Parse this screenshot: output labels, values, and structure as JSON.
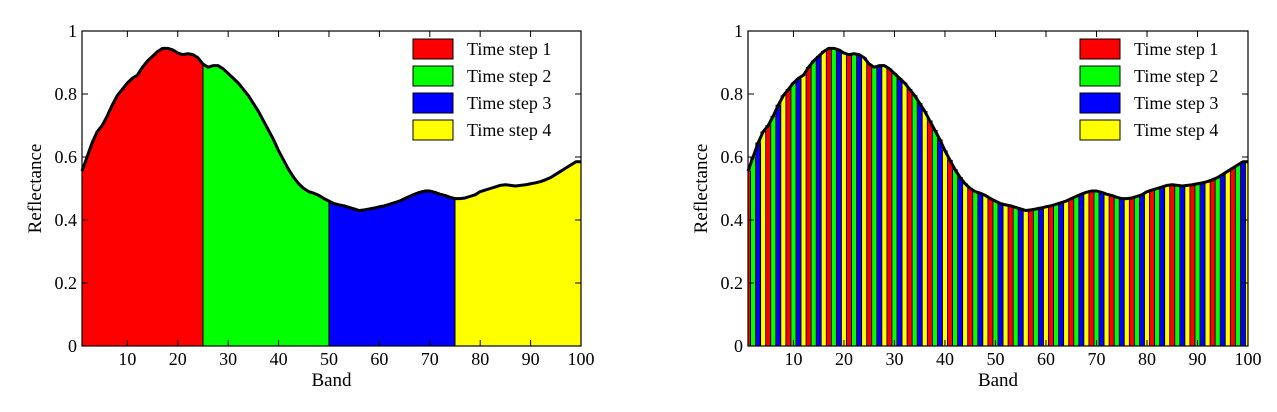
{
  "chart_data": [
    {
      "id": "left",
      "type": "area",
      "xlabel": "Band",
      "ylabel": "Reflectance",
      "xlim": [
        1,
        100
      ],
      "ylim": [
        0,
        1
      ],
      "xticks": [
        10,
        20,
        30,
        40,
        50,
        60,
        70,
        80,
        90,
        100
      ],
      "yticks": [
        0,
        0.2,
        0.4,
        0.6,
        0.8,
        1
      ],
      "ytick_labels": [
        "0",
        "0.2",
        "0.4",
        "0.6",
        "0.8",
        "1"
      ],
      "grid": false,
      "legend_position": "top-right",
      "segments": [
        {
          "name": "Time step 1",
          "color": "#ff0000",
          "x_range": [
            1,
            25
          ]
        },
        {
          "name": "Time step 2",
          "color": "#00ff00",
          "x_range": [
            25,
            50
          ]
        },
        {
          "name": "Time step 3",
          "color": "#0000ff",
          "x_range": [
            50,
            75
          ]
        },
        {
          "name": "Time step 4",
          "color": "#ffff00",
          "x_range": [
            75,
            100
          ]
        }
      ]
    },
    {
      "id": "right",
      "type": "bar",
      "xlabel": "Band",
      "ylabel": "Reflectance",
      "xlim": [
        1,
        100
      ],
      "ylim": [
        0,
        1
      ],
      "xticks": [
        10,
        20,
        30,
        40,
        50,
        60,
        70,
        80,
        90,
        100
      ],
      "yticks": [
        0,
        0.2,
        0.4,
        0.6,
        0.8,
        1
      ],
      "ytick_labels": [
        "0",
        "0.2",
        "0.4",
        "0.6",
        "0.8",
        "1"
      ],
      "grid": false,
      "legend_position": "top-right",
      "series": [
        {
          "name": "Time step 1",
          "color": "#ff0000",
          "band_offset": 0
        },
        {
          "name": "Time step 2",
          "color": "#00ff00",
          "band_offset": 1
        },
        {
          "name": "Time step 3",
          "color": "#0000ff",
          "band_offset": 2
        },
        {
          "name": "Time step 4",
          "color": "#ffff00",
          "band_offset": 3
        }
      ]
    }
  ],
  "spectrum": {
    "x": [
      1,
      2,
      3,
      4,
      5,
      6,
      7,
      8,
      9,
      10,
      11,
      12,
      13,
      14,
      15,
      16,
      17,
      18,
      19,
      20,
      21,
      22,
      23,
      24,
      25,
      26,
      27,
      28,
      29,
      30,
      31,
      32,
      33,
      34,
      35,
      36,
      37,
      38,
      39,
      40,
      41,
      42,
      43,
      44,
      45,
      46,
      47,
      48,
      49,
      50,
      51,
      52,
      53,
      54,
      55,
      56,
      57,
      58,
      59,
      60,
      61,
      62,
      63,
      64,
      65,
      66,
      67,
      68,
      69,
      70,
      71,
      72,
      73,
      74,
      75,
      76,
      77,
      78,
      79,
      80,
      81,
      82,
      83,
      84,
      85,
      86,
      87,
      88,
      89,
      90,
      91,
      92,
      93,
      94,
      95,
      96,
      97,
      98,
      99,
      100
    ],
    "y": [
      0.555,
      0.6,
      0.645,
      0.68,
      0.7,
      0.73,
      0.765,
      0.795,
      0.815,
      0.835,
      0.85,
      0.86,
      0.885,
      0.905,
      0.92,
      0.935,
      0.945,
      0.945,
      0.94,
      0.93,
      0.925,
      0.928,
      0.925,
      0.915,
      0.895,
      0.885,
      0.89,
      0.89,
      0.88,
      0.865,
      0.85,
      0.835,
      0.815,
      0.795,
      0.77,
      0.745,
      0.715,
      0.685,
      0.655,
      0.62,
      0.59,
      0.56,
      0.535,
      0.515,
      0.5,
      0.49,
      0.485,
      0.478,
      0.468,
      0.46,
      0.452,
      0.448,
      0.445,
      0.44,
      0.435,
      0.43,
      0.432,
      0.435,
      0.438,
      0.442,
      0.445,
      0.45,
      0.455,
      0.46,
      0.468,
      0.475,
      0.482,
      0.488,
      0.492,
      0.492,
      0.488,
      0.482,
      0.478,
      0.472,
      0.468,
      0.468,
      0.47,
      0.475,
      0.48,
      0.49,
      0.495,
      0.5,
      0.505,
      0.51,
      0.512,
      0.51,
      0.508,
      0.51,
      0.512,
      0.515,
      0.518,
      0.522,
      0.528,
      0.535,
      0.545,
      0.555,
      0.565,
      0.575,
      0.585,
      0.585
    ]
  }
}
